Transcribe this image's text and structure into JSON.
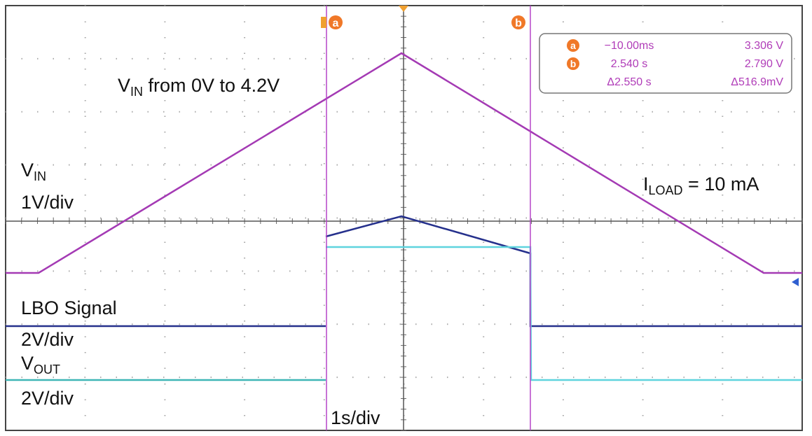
{
  "labels": {
    "vin_sweep": {
      "main": "V",
      "sub": "IN",
      "rest": " from 0V to 4.2V"
    },
    "vin": {
      "main": "V",
      "sub": "IN"
    },
    "vin_scale": "1V/div",
    "iload": {
      "main": "I",
      "sub": "LOAD",
      "rest": " = 10 mA"
    },
    "lbo": "LBO Signal",
    "lbo_scale": "2V/div",
    "vout": {
      "main": "V",
      "sub": "OUT"
    },
    "vout_scale": "2V/div",
    "time_scale": "1s/div"
  },
  "cursors": {
    "a": "a",
    "b": "b"
  },
  "readout": {
    "rows": [
      {
        "marker": "a",
        "time": "−10.00ms",
        "value": "3.306 V"
      },
      {
        "marker": "b",
        "time": "2.540 s",
        "value": "2.790 V"
      },
      {
        "time": "Δ2.550 s",
        "value": "Δ516.9mV"
      }
    ]
  }
}
